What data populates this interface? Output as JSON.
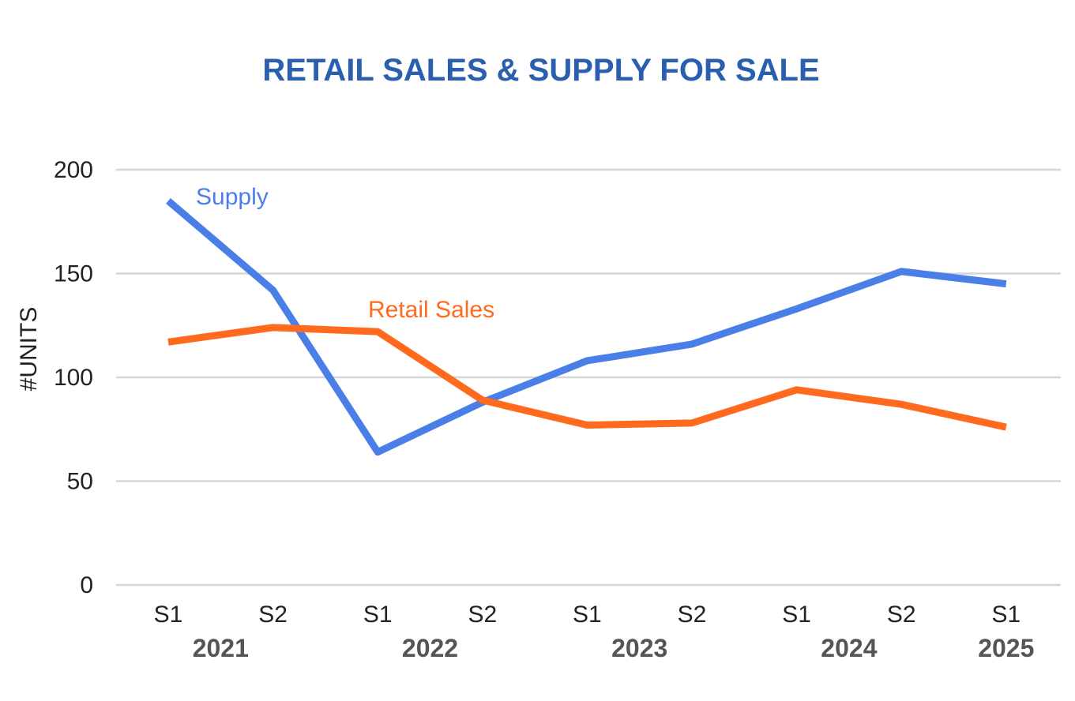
{
  "chart_data": {
    "type": "line",
    "title": "RETAIL SALES & SUPPLY FOR SALE",
    "ylabel": "#UNITS",
    "xlabel": "",
    "ylim": [
      0,
      200
    ],
    "yticks": [
      0,
      50,
      100,
      150,
      200
    ],
    "grid": true,
    "categories": [
      "S1",
      "S2",
      "S1",
      "S2",
      "S1",
      "S2",
      "S1",
      "S2",
      "S1"
    ],
    "years": [
      {
        "label": "2021",
        "start": 0,
        "end": 1
      },
      {
        "label": "2022",
        "start": 2,
        "end": 3
      },
      {
        "label": "2023",
        "start": 4,
        "end": 5
      },
      {
        "label": "2024",
        "start": 6,
        "end": 7
      },
      {
        "label": "2025",
        "start": 8,
        "end": 8
      }
    ],
    "series": [
      {
        "name": "Supply",
        "color": "#4a7fe8",
        "values": [
          185,
          142,
          64,
          88,
          108,
          116,
          133,
          151,
          145
        ]
      },
      {
        "name": "Retail Sales",
        "color": "#ff6a1f",
        "values": [
          117,
          124,
          122,
          89,
          77,
          78,
          94,
          87,
          76
        ]
      }
    ]
  },
  "colors": {
    "title": "#2a5fb0",
    "grid": "#d6d6d6",
    "axis_text": "#222222",
    "year_text": "#555555"
  }
}
